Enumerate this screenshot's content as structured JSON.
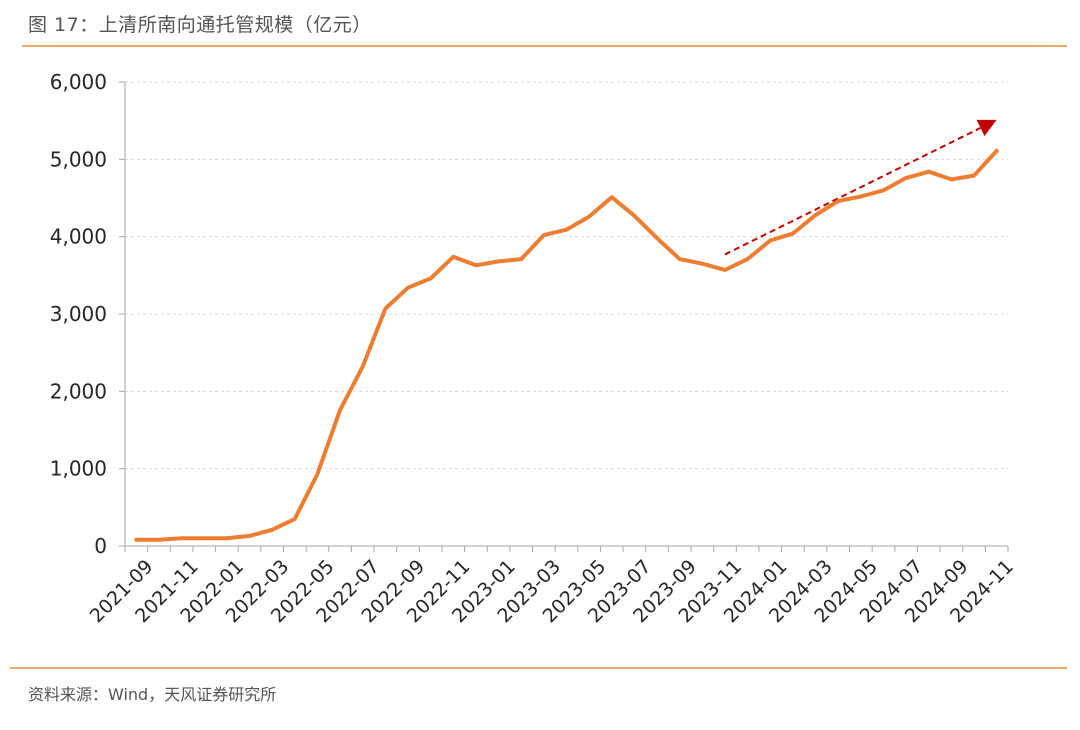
{
  "figure": {
    "title": "图 17：上清所南向通托管规模（亿元）",
    "source": "资料来源：Wind，天风证券研究所"
  },
  "chart_data": {
    "type": "line",
    "x": [
      "2021-09",
      "2021-10",
      "2021-11",
      "2021-12",
      "2022-01",
      "2022-02",
      "2022-03",
      "2022-04",
      "2022-05",
      "2022-06",
      "2022-07",
      "2022-08",
      "2022-09",
      "2022-10",
      "2022-11",
      "2022-12",
      "2023-01",
      "2023-02",
      "2023-03",
      "2023-04",
      "2023-05",
      "2023-06",
      "2023-07",
      "2023-08",
      "2023-09",
      "2023-10",
      "2023-11",
      "2023-12",
      "2024-01",
      "2024-02",
      "2024-03",
      "2024-04",
      "2024-05",
      "2024-06",
      "2024-07",
      "2024-08",
      "2024-09",
      "2024-10",
      "2024-11"
    ],
    "x_tick_labels": [
      "2021-09",
      "2021-11",
      "2022-01",
      "2022-03",
      "2022-05",
      "2022-07",
      "2022-09",
      "2022-11",
      "2023-01",
      "2023-03",
      "2023-05",
      "2023-07",
      "2023-09",
      "2023-11",
      "2024-01",
      "2024-03",
      "2024-05",
      "2024-07",
      "2024-09",
      "2024-11"
    ],
    "series": [
      {
        "values": [
          80,
          80,
          100,
          100,
          100,
          130,
          210,
          350,
          930,
          1760,
          2320,
          3070,
          3340,
          3460,
          3740,
          3630,
          3680,
          3710,
          4020,
          4090,
          4260,
          4510,
          4270,
          3980,
          3710,
          3650,
          3570,
          3710,
          3950,
          4040,
          4280,
          4460,
          4520,
          4600,
          4760,
          4840,
          4740,
          4790,
          5110
        ],
        "color": "#ED7D31"
      }
    ],
    "y_tick_labels": [
      "0",
      "1,000",
      "2,000",
      "3,000",
      "4,000",
      "5,000",
      "6,000"
    ],
    "ylim": [
      0,
      6000
    ],
    "grid": true,
    "annotations": [
      {
        "type": "dashed-arrow",
        "color": "#C00000",
        "from": [
          "2023-11",
          3770
        ],
        "to": [
          "2024-11",
          5510
        ]
      }
    ]
  }
}
